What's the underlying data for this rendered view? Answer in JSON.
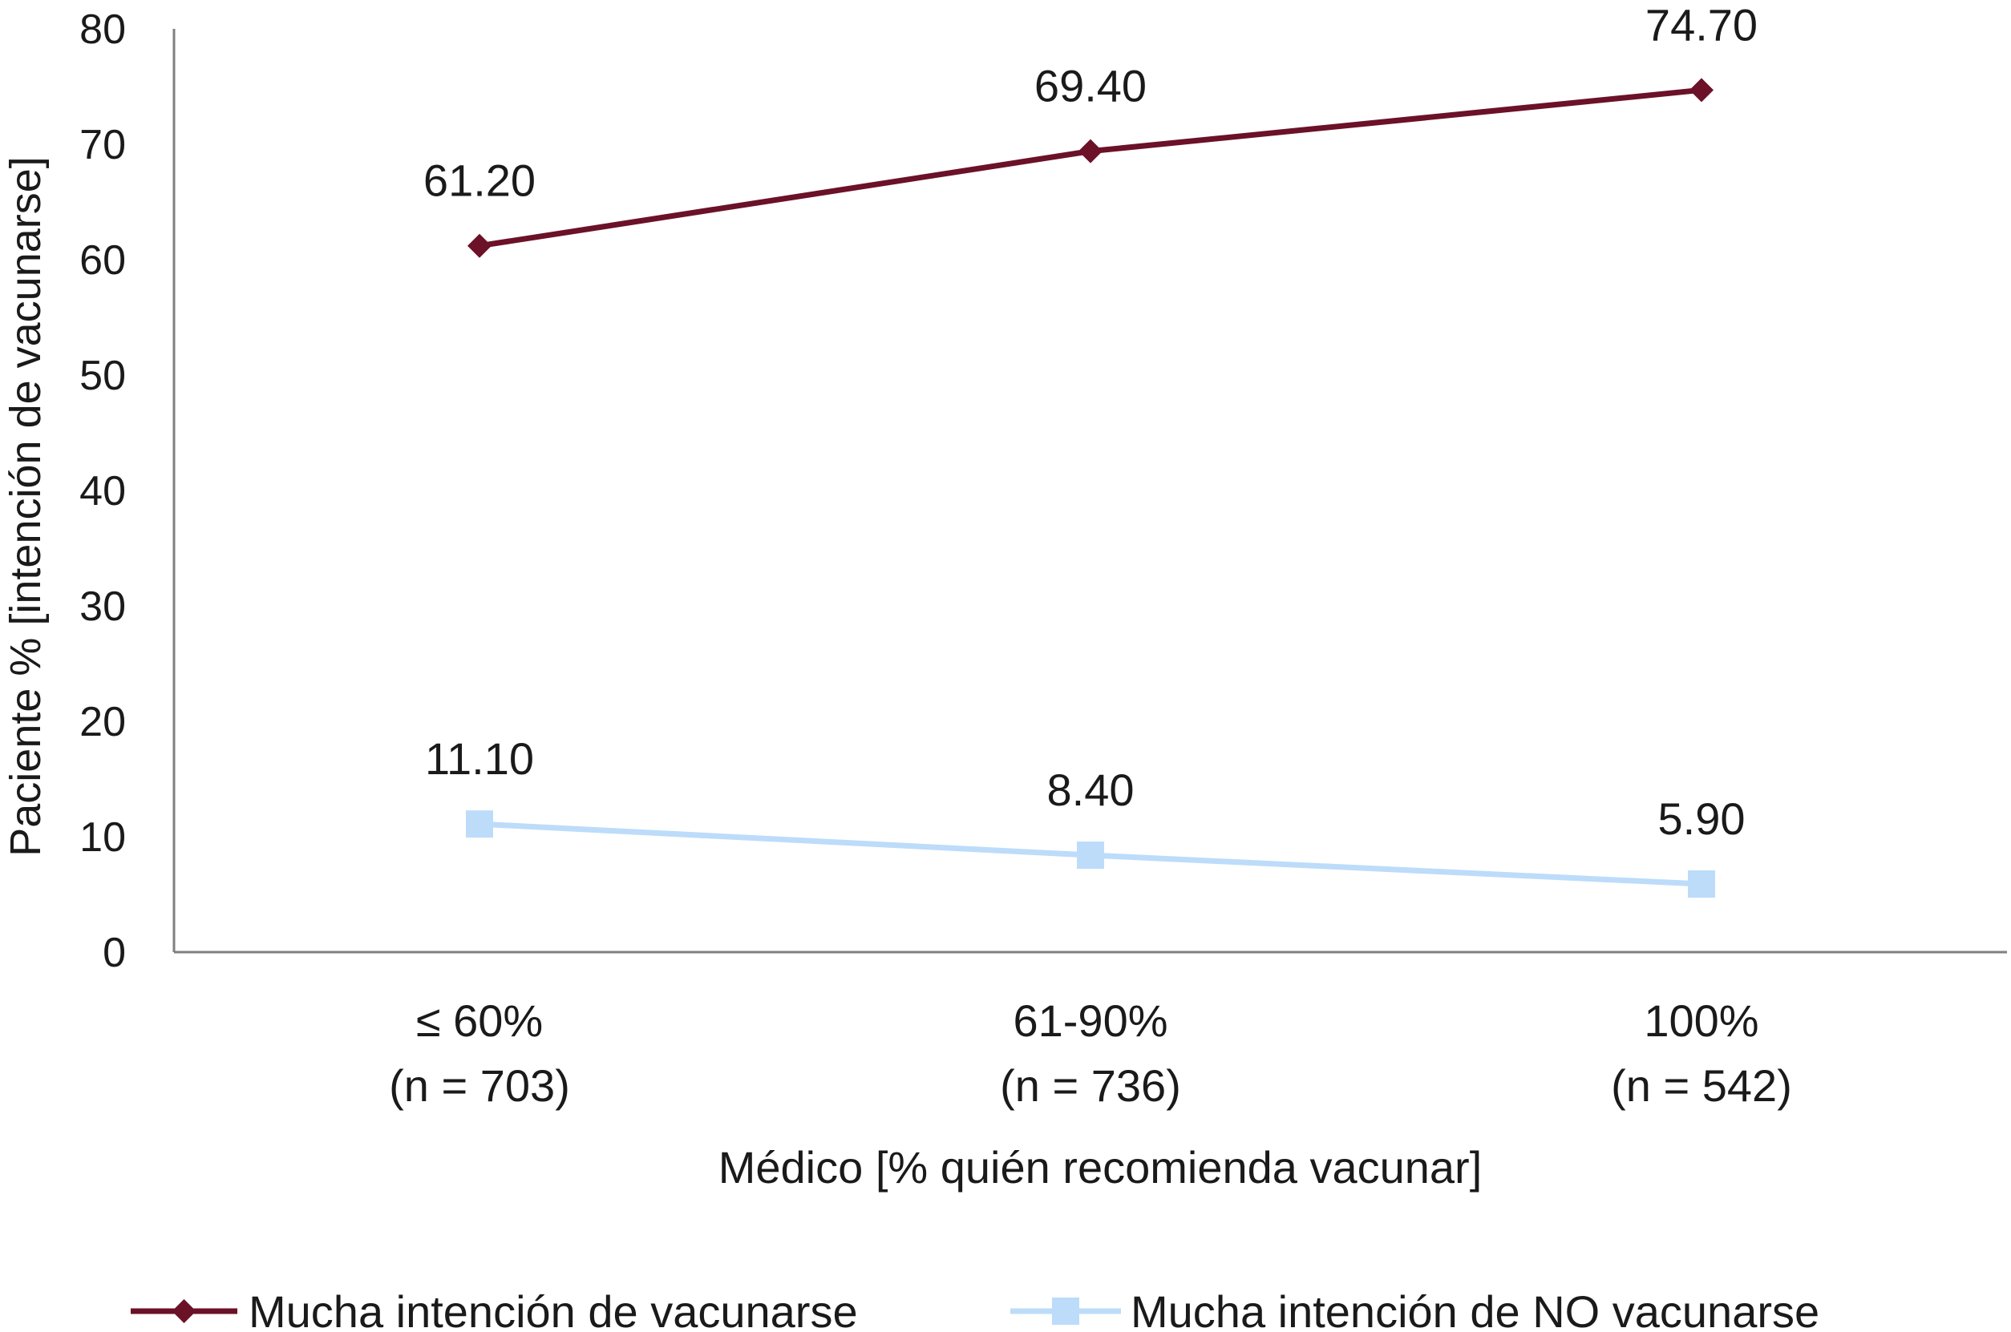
{
  "chart_data": {
    "type": "line",
    "title": "",
    "xlabel": "Médico [% quién recomienda vacunar]",
    "ylabel": "Paciente % [intención de vacunarse]",
    "ylim": [
      0,
      80
    ],
    "yticks": [
      "0",
      "10",
      "20",
      "30",
      "40",
      "50",
      "60",
      "70",
      "80"
    ],
    "categories": [
      {
        "line1": "≤ 60%",
        "line2": "(n = 703)"
      },
      {
        "line1": "61-90%",
        "line2": "(n = 736)"
      },
      {
        "line1": "100%",
        "line2": "(n = 542)"
      }
    ],
    "grid": false,
    "legend_position": "bottom",
    "series": [
      {
        "name": "Mucha intención de vacunarse",
        "values": [
          61.2,
          69.4,
          74.7
        ],
        "labels": [
          "61.20",
          "69.40",
          "74.70"
        ],
        "color": "#6b1128",
        "marker": "diamond"
      },
      {
        "name": "Mucha intención de NO vacunarse",
        "values": [
          11.1,
          8.4,
          5.9
        ],
        "labels": [
          "11.10",
          "8.40",
          "5.90"
        ],
        "color": "#bcdcfa",
        "marker": "square"
      }
    ]
  }
}
